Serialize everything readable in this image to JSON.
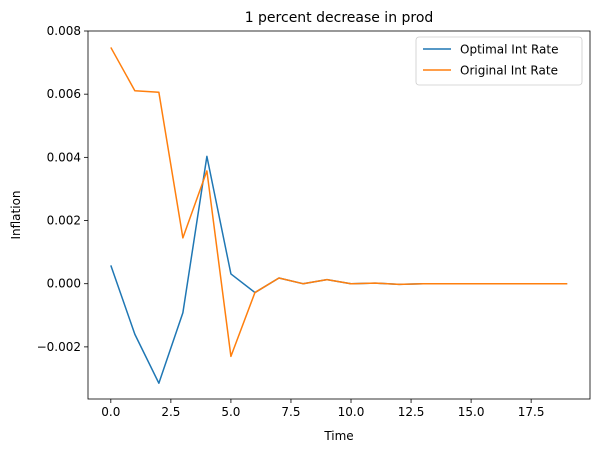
{
  "chart_data": {
    "type": "line",
    "title": "1 percent decrease in prod",
    "xlabel": "Time",
    "ylabel": "Inflation",
    "xlim": [
      -0.95,
      19.95
    ],
    "ylim": [
      -0.00365,
      0.008
    ],
    "xticks": [
      0.0,
      2.5,
      5.0,
      7.5,
      10.0,
      12.5,
      15.0,
      17.5
    ],
    "xtick_labels": [
      "0.0",
      "2.5",
      "5.0",
      "7.5",
      "10.0",
      "12.5",
      "15.0",
      "17.5"
    ],
    "yticks": [
      -0.002,
      0.0,
      0.002,
      0.004,
      0.006,
      0.008
    ],
    "ytick_labels": [
      "−0.002",
      "0.000",
      "0.002",
      "0.004",
      "0.006",
      "0.008"
    ],
    "grid": false,
    "legend_position": "top-right",
    "x": [
      0,
      1,
      2,
      3,
      4,
      5,
      6,
      7,
      8,
      9,
      10,
      11,
      12,
      13,
      14,
      15,
      16,
      17,
      18,
      19
    ],
    "series": [
      {
        "name": "Optimal Int Rate",
        "color": "#1f77b4",
        "values": [
          0.00058,
          -0.0016,
          -0.00315,
          -0.00092,
          0.00403,
          0.00031,
          -0.00028,
          0.00018,
          0.0,
          0.00013,
          0.0,
          2e-05,
          -2e-05,
          0.0,
          0.0,
          0.0,
          0.0,
          0.0,
          0.0,
          0.0
        ]
      },
      {
        "name": "Original Int Rate",
        "color": "#ff7f0e",
        "values": [
          0.00748,
          0.00611,
          0.00606,
          0.00145,
          0.00357,
          -0.0023,
          -0.00028,
          0.00018,
          0.0,
          0.00013,
          0.0,
          2e-05,
          -2e-05,
          0.0,
          0.0,
          0.0,
          0.0,
          0.0,
          0.0,
          0.0
        ]
      }
    ]
  }
}
